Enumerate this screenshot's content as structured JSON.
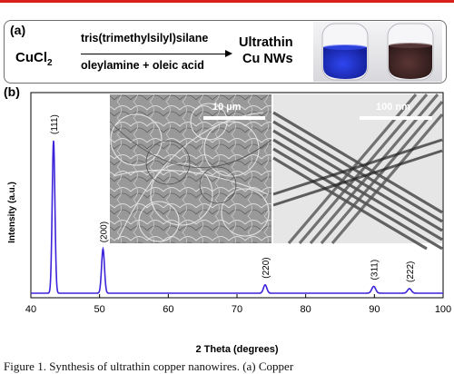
{
  "panel_a": {
    "label": "(a)",
    "reactant": "CuCl",
    "reactant_sub": "2",
    "reagent_above": "tris(trimethylsilyl)silane",
    "reagent_below": "oleylamine + oleic acid",
    "product_line1": "Ultrathin",
    "product_line2": "Cu NWs",
    "colors": {
      "blue_solution": "#1c2ec8",
      "brown_solution": "#4a2c2a"
    }
  },
  "panel_b": {
    "label": "(b)",
    "sem_scale": "10 µm",
    "tem_scale": "100 nm"
  },
  "chart_data": {
    "type": "line",
    "xlabel": "2 Theta (degrees)",
    "ylabel": "Intensity (a.u.)",
    "xlim": [
      40,
      100
    ],
    "xticks": [
      40,
      50,
      60,
      70,
      80,
      90,
      100
    ],
    "line_color": "#3b24d9",
    "peaks": [
      {
        "label": "(111)",
        "x": 43.3,
        "height": 1.0,
        "width": 0.28
      },
      {
        "label": "(200)",
        "x": 50.5,
        "height": 0.29,
        "width": 0.3
      },
      {
        "label": "(220)",
        "x": 74.1,
        "height": 0.055,
        "width": 0.35
      },
      {
        "label": "(311)",
        "x": 89.9,
        "height": 0.045,
        "width": 0.4
      },
      {
        "label": "(222)",
        "x": 95.1,
        "height": 0.03,
        "width": 0.4
      }
    ]
  },
  "caption": "Figure 1. Synthesis of ultrathin copper nanowires. (a) Copper"
}
